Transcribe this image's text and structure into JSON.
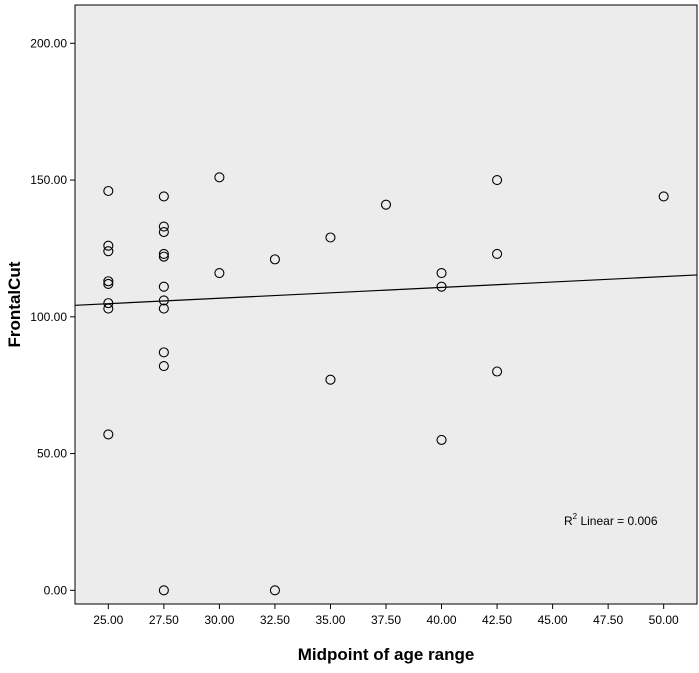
{
  "chart_data": {
    "type": "scatter",
    "title": "",
    "xlabel": "Midpoint of age range",
    "ylabel": "FrontalCut",
    "xlim": [
      23.5,
      51.5
    ],
    "ylim": [
      -5,
      214
    ],
    "x_ticks": [
      25,
      27.5,
      30,
      32.5,
      35,
      37.5,
      40,
      42.5,
      45,
      47.5,
      50
    ],
    "x_tick_labels": [
      "25.00",
      "27.50",
      "30.00",
      "32.50",
      "35.00",
      "37.50",
      "40.00",
      "42.50",
      "45.00",
      "47.50",
      "50.00"
    ],
    "y_ticks": [
      0,
      50,
      100,
      150,
      200
    ],
    "y_tick_labels": [
      "0.00",
      "50.00",
      "100.00",
      "150.00",
      "200.00"
    ],
    "grid": false,
    "plot_background": "#ececec",
    "marker": "open-circle",
    "points": [
      {
        "x": 25,
        "y": 146
      },
      {
        "x": 25,
        "y": 126
      },
      {
        "x": 25,
        "y": 124
      },
      {
        "x": 25,
        "y": 113
      },
      {
        "x": 25,
        "y": 112
      },
      {
        "x": 25,
        "y": 105
      },
      {
        "x": 25,
        "y": 103
      },
      {
        "x": 25,
        "y": 57
      },
      {
        "x": 27.5,
        "y": 144
      },
      {
        "x": 27.5,
        "y": 133
      },
      {
        "x": 27.5,
        "y": 131
      },
      {
        "x": 27.5,
        "y": 123
      },
      {
        "x": 27.5,
        "y": 122
      },
      {
        "x": 27.5,
        "y": 111
      },
      {
        "x": 27.5,
        "y": 106
      },
      {
        "x": 27.5,
        "y": 103
      },
      {
        "x": 27.5,
        "y": 87
      },
      {
        "x": 27.5,
        "y": 82
      },
      {
        "x": 27.5,
        "y": 0
      },
      {
        "x": 30,
        "y": 151
      },
      {
        "x": 30,
        "y": 116
      },
      {
        "x": 32.5,
        "y": 121
      },
      {
        "x": 32.5,
        "y": 0
      },
      {
        "x": 35,
        "y": 129
      },
      {
        "x": 35,
        "y": 77
      },
      {
        "x": 37.5,
        "y": 141
      },
      {
        "x": 40,
        "y": 116
      },
      {
        "x": 40,
        "y": 111
      },
      {
        "x": 40,
        "y": 55
      },
      {
        "x": 42.5,
        "y": 150
      },
      {
        "x": 42.5,
        "y": 123
      },
      {
        "x": 42.5,
        "y": 80
      },
      {
        "x": 50,
        "y": 144
      }
    ],
    "fit_line": {
      "x": [
        23.5,
        51.5
      ],
      "y": [
        104.2,
        115.3
      ]
    },
    "annotation": {
      "r_label": "R",
      "r_superscript": "2",
      "rest": " Linear = 0.006"
    }
  }
}
